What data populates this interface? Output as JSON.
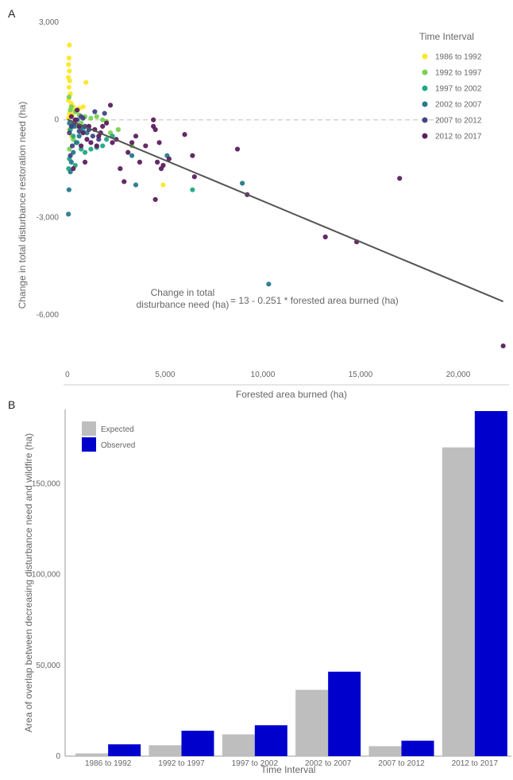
{
  "chart_data": [
    {
      "panel": "A",
      "type": "scatter",
      "xlabel": "Forested area burned (ha)",
      "ylabel": "Change in total disturbance restoration need (ha)",
      "xlim": [
        -200,
        22600
      ],
      "ylim": [
        -8000,
        3000
      ],
      "x_ticks": [
        0,
        5000,
        10000,
        15000,
        20000
      ],
      "x_tick_labels": [
        "0",
        "5,000",
        "10,000",
        "15,000",
        "20,000"
      ],
      "y_ticks": [
        3000,
        0,
        -3000,
        -6000
      ],
      "y_tick_labels": [
        "3,000",
        "0",
        "-3,000",
        "-6,000"
      ],
      "reference_line_y": 0,
      "legend": {
        "title": "Time Interval",
        "position": "top-right",
        "entries": [
          {
            "label": "1986 to 1992",
            "color": "#fde725"
          },
          {
            "label": "1992 to 1997",
            "color": "#7ad151"
          },
          {
            "label": "1997 to 2002",
            "color": "#22a884"
          },
          {
            "label": "2002 to 2007",
            "color": "#2a788e"
          },
          {
            "label": "2007 to 2012",
            "color": "#414487"
          },
          {
            "label": "2012 to 2017",
            "color": "#5c1f5e"
          }
        ]
      },
      "regression": {
        "intercept": 13,
        "slope": -0.251,
        "x_range": [
          0,
          22300
        ],
        "color": "#555555"
      },
      "annotation": {
        "lhs_line1": "Change in total",
        "lhs_line2": "disturbance need (ha)",
        "rhs": "= 13 - 0.251 * forested area burned (ha)"
      },
      "series": [
        {
          "name": "1986 to 1992",
          "points": [
            [
              100,
              2300
            ],
            [
              80,
              1900
            ],
            [
              60,
              1700
            ],
            [
              100,
              1500
            ],
            [
              50,
              1300
            ],
            [
              120,
              1200
            ],
            [
              950,
              1150
            ],
            [
              80,
              1000
            ],
            [
              150,
              800
            ],
            [
              60,
              600
            ],
            [
              200,
              500
            ],
            [
              300,
              400
            ],
            [
              400,
              300
            ],
            [
              600,
              350
            ],
            [
              800,
              400
            ],
            [
              100,
              200
            ],
            [
              250,
              150
            ],
            [
              50,
              50
            ],
            [
              150,
              -100
            ],
            [
              100,
              -300
            ],
            [
              200,
              -500
            ],
            [
              4900,
              -2000
            ]
          ]
        },
        {
          "name": "1992 to 1997",
          "points": [
            [
              80,
              700
            ],
            [
              200,
              400
            ],
            [
              400,
              250
            ],
            [
              600,
              150
            ],
            [
              900,
              100
            ],
            [
              1200,
              50
            ],
            [
              1500,
              100
            ],
            [
              1800,
              0
            ],
            [
              2000,
              -50
            ],
            [
              2200,
              -400
            ],
            [
              2600,
              -300
            ],
            [
              3300,
              -800
            ],
            [
              300,
              -600
            ],
            [
              100,
              -900
            ],
            [
              500,
              -200
            ],
            [
              150,
              300
            ],
            [
              700,
              -100
            ]
          ]
        },
        {
          "name": "1997 to 2002",
          "points": [
            [
              150,
              -300
            ],
            [
              300,
              -500
            ],
            [
              500,
              -700
            ],
            [
              700,
              -900
            ],
            [
              900,
              -1000
            ],
            [
              1200,
              -900
            ],
            [
              1500,
              -850
            ],
            [
              1800,
              -800
            ],
            [
              2000,
              -600
            ],
            [
              2300,
              -500
            ],
            [
              400,
              -1400
            ],
            [
              100,
              -1200
            ],
            [
              6400,
              -2150
            ],
            [
              60,
              -1500
            ],
            [
              250,
              -200
            ],
            [
              800,
              -300
            ]
          ]
        },
        {
          "name": "2002 to 2007",
          "points": [
            [
              50,
              -2900
            ],
            [
              80,
              -2150
            ],
            [
              150,
              -1600
            ],
            [
              200,
              -1300
            ],
            [
              300,
              -1000
            ],
            [
              450,
              -700
            ],
            [
              600,
              -500
            ],
            [
              1000,
              -400
            ],
            [
              3300,
              -1100
            ],
            [
              3500,
              -2000
            ],
            [
              5100,
              -1100
            ],
            [
              8950,
              -1950
            ],
            [
              10300,
              -5050
            ],
            [
              100,
              -100
            ],
            [
              350,
              -200
            ],
            [
              700,
              -250
            ]
          ]
        },
        {
          "name": "2007 to 2012",
          "points": [
            [
              100,
              -400
            ],
            [
              200,
              -200
            ],
            [
              350,
              -100
            ],
            [
              500,
              0
            ],
            [
              700,
              100
            ],
            [
              900,
              -200
            ],
            [
              1100,
              -300
            ],
            [
              1300,
              -500
            ],
            [
              1600,
              -600
            ],
            [
              1900,
              200
            ],
            [
              250,
              -800
            ],
            [
              150,
              -1100
            ],
            [
              600,
              -350
            ],
            [
              1400,
              250
            ],
            [
              800,
              50
            ]
          ]
        },
        {
          "name": "2012 to 2017",
          "points": [
            [
              200,
              100
            ],
            [
              400,
              0
            ],
            [
              600,
              -200
            ],
            [
              800,
              -400
            ],
            [
              1000,
              -600
            ],
            [
              1200,
              -700
            ],
            [
              1400,
              -300
            ],
            [
              1600,
              -500
            ],
            [
              1800,
              -200
            ],
            [
              2000,
              -100
            ],
            [
              2200,
              450
            ],
            [
              2500,
              -600
            ],
            [
              2700,
              -1500
            ],
            [
              2900,
              -1900
            ],
            [
              3100,
              -1000
            ],
            [
              3300,
              -700
            ],
            [
              3500,
              -500
            ],
            [
              3700,
              -1300
            ],
            [
              4000,
              -800
            ],
            [
              4400,
              -200
            ],
            [
              4700,
              -700
            ],
            [
              4500,
              -2450
            ],
            [
              4600,
              -1300
            ],
            [
              4800,
              -1500
            ],
            [
              4900,
              -1400
            ],
            [
              4500,
              -300
            ],
            [
              4400,
              0
            ],
            [
              5200,
              -1200
            ],
            [
              6000,
              -450
            ],
            [
              6400,
              -1100
            ],
            [
              6500,
              -1750
            ],
            [
              8700,
              -900
            ],
            [
              9200,
              -2300
            ],
            [
              13200,
              -3600
            ],
            [
              14800,
              -3750
            ],
            [
              17000,
              -1800
            ],
            [
              22300,
              -6950
            ],
            [
              500,
              300
            ],
            [
              700,
              -800
            ],
            [
              300,
              -1500
            ],
            [
              900,
              -1300
            ],
            [
              1100,
              -200
            ],
            [
              1500,
              -800
            ],
            [
              1700,
              -400
            ],
            [
              2300,
              -700
            ]
          ]
        }
      ]
    },
    {
      "panel": "B",
      "type": "bar",
      "xlabel": "Time Interval",
      "ylabel": "Area of overlap between decreasing disturbance need and wildfire (ha)",
      "ylim": [
        0,
        190000
      ],
      "y_ticks": [
        0,
        50000,
        100000,
        150000
      ],
      "y_tick_labels": [
        "0",
        "50,000",
        "100,000",
        "150,000"
      ],
      "categories": [
        "1986 to 1992",
        "1992 to 1997",
        "1997 to 2002",
        "2002 to 2007",
        "2007 to 2012",
        "2012 to 2017"
      ],
      "legend": {
        "position": "top-left"
      },
      "series": [
        {
          "name": "Expected",
          "color": "#bebebe",
          "values": [
            1500,
            6000,
            12000,
            36500,
            5500,
            170000
          ]
        },
        {
          "name": "Observed",
          "color": "#0000cd",
          "values": [
            6500,
            14000,
            17000,
            46500,
            8500,
            190000
          ]
        }
      ]
    }
  ]
}
